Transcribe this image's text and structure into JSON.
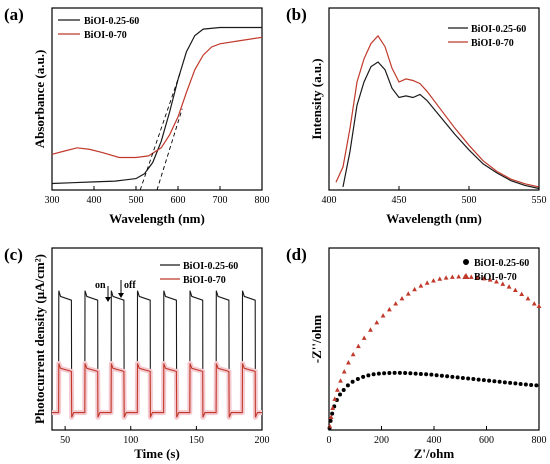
{
  "colors": {
    "black_series": "#1a1a1a",
    "red_series": "#c0392b",
    "fill_pink": "#f4c9cf"
  },
  "chart_data": [
    {
      "panel": "(a)",
      "type": "line",
      "xlabel": "Wavelength (nm)",
      "ylabel": "Absorbance (a.u.)",
      "xlim": [
        300,
        800
      ],
      "xticks": [
        "300",
        "400",
        "500",
        "600",
        "700",
        "800"
      ],
      "yticks": [],
      "legend": "top-left",
      "series": [
        {
          "name": "BiOI-0.25-60",
          "color": "#1a1a1a",
          "x": [
            300,
            350,
            400,
            450,
            500,
            520,
            540,
            560,
            580,
            600,
            620,
            640,
            660,
            700,
            750,
            800
          ],
          "y": [
            0.04,
            0.045,
            0.05,
            0.055,
            0.07,
            0.1,
            0.17,
            0.3,
            0.48,
            0.68,
            0.85,
            0.95,
            0.99,
            1.0,
            1.0,
            1.0
          ]
        },
        {
          "name": "BiOI-0-70",
          "color": "#c0392b",
          "x": [
            300,
            330,
            360,
            390,
            420,
            460,
            500,
            530,
            560,
            580,
            600,
            620,
            640,
            660,
            680,
            700,
            750,
            800
          ],
          "y": [
            0.22,
            0.24,
            0.26,
            0.25,
            0.23,
            0.2,
            0.2,
            0.21,
            0.26,
            0.34,
            0.45,
            0.6,
            0.74,
            0.83,
            0.88,
            0.9,
            0.92,
            0.94
          ]
        }
      ],
      "annotations": "dashed tangent lines intersecting x-axis near 510 nm and 550 nm"
    },
    {
      "panel": "(b)",
      "type": "line",
      "xlabel": "Wavelength (nm)",
      "ylabel": "Intensity (a.u.)",
      "xlim": [
        400,
        550
      ],
      "xticks": [
        "400",
        "450",
        "500",
        "550"
      ],
      "yticks": [],
      "legend": "top-right",
      "series": [
        {
          "name": "BiOI-0.25-60",
          "color": "#1a1a1a",
          "x": [
            410,
            415,
            420,
            425,
            430,
            435,
            440,
            445,
            450,
            455,
            460,
            465,
            470,
            480,
            490,
            500,
            510,
            520,
            530,
            540,
            550
          ],
          "y": [
            0.02,
            0.25,
            0.55,
            0.7,
            0.8,
            0.83,
            0.78,
            0.66,
            0.6,
            0.61,
            0.6,
            0.62,
            0.58,
            0.47,
            0.36,
            0.26,
            0.17,
            0.11,
            0.06,
            0.03,
            0.01
          ]
        },
        {
          "name": "BiOI-0-70",
          "color": "#c0392b",
          "x": [
            405,
            410,
            415,
            420,
            425,
            430,
            435,
            440,
            445,
            450,
            455,
            460,
            465,
            470,
            480,
            490,
            500,
            510,
            520,
            530,
            540,
            550
          ],
          "y": [
            0.05,
            0.15,
            0.4,
            0.7,
            0.85,
            0.95,
            1.0,
            0.93,
            0.79,
            0.7,
            0.72,
            0.71,
            0.69,
            0.64,
            0.52,
            0.4,
            0.29,
            0.19,
            0.12,
            0.07,
            0.04,
            0.02
          ]
        }
      ]
    },
    {
      "panel": "(c)",
      "type": "line",
      "xlabel": "Time (s)",
      "ylabel": "Photocurrent density (μA/cm²)",
      "xlim": [
        40,
        200
      ],
      "xticks": [
        "50",
        "100",
        "150",
        "200"
      ],
      "yticks": [],
      "legend": "top-right",
      "annotations": [
        "on",
        "off"
      ],
      "cycle_start": 45,
      "cycle_period": 20,
      "on_duration": 10,
      "cycles": 8,
      "series": [
        {
          "name": "BiOI-0.25-60",
          "color": "#1a1a1a",
          "on_level": 0.78,
          "steady_level": 0.72,
          "dark_level": 0.02
        },
        {
          "name": "BiOI-0-70",
          "color": "#c0392b",
          "on_level": 0.32,
          "steady_level": 0.27,
          "dark_level": 0.01
        }
      ]
    },
    {
      "panel": "(d)",
      "type": "scatter",
      "xlabel": "Z'/ohm",
      "ylabel": "-Z''/ohm",
      "xlim": [
        0,
        800
      ],
      "ylim": [
        0,
        1000
      ],
      "xticks": [
        "0",
        "200",
        "400",
        "600",
        "800"
      ],
      "yticks": [],
      "legend": "top-right",
      "series": [
        {
          "name": "BiOI-0.25-60",
          "color": "#000000",
          "marker": "circle",
          "x": [
            2,
            6,
            12,
            20,
            30,
            42,
            56,
            72,
            90,
            110,
            130,
            150,
            170,
            190,
            210,
            230,
            250,
            270,
            290,
            310,
            330,
            350,
            370,
            390,
            410,
            430,
            450,
            470,
            490,
            510,
            530,
            550,
            570,
            590,
            610,
            630,
            650,
            670,
            690,
            710,
            730,
            750,
            770,
            790
          ],
          "y": [
            10,
            50,
            90,
            130,
            165,
            195,
            220,
            245,
            265,
            280,
            292,
            300,
            306,
            310,
            312,
            313,
            314,
            314,
            313,
            312,
            310,
            308,
            306,
            304,
            301,
            298,
            295,
            292,
            289,
            286,
            283,
            280,
            277,
            274,
            271,
            268,
            265,
            262,
            259,
            256,
            253,
            250,
            247,
            245
          ]
        },
        {
          "name": "BiOI-0-70",
          "color": "#c0392b",
          "marker": "triangle",
          "x": [
            3,
            8,
            14,
            22,
            32,
            44,
            58,
            74,
            92,
            112,
            134,
            158,
            182,
            206,
            230,
            254,
            278,
            302,
            326,
            350,
            374,
            398,
            422,
            446,
            470,
            494,
            518,
            542,
            566,
            590,
            614,
            638,
            662,
            686,
            710,
            734,
            758,
            782,
            800
          ],
          "y": [
            20,
            70,
            120,
            170,
            220,
            270,
            320,
            370,
            415,
            460,
            505,
            550,
            590,
            628,
            662,
            694,
            722,
            748,
            772,
            792,
            808,
            820,
            830,
            836,
            840,
            842,
            842,
            840,
            837,
            832,
            825,
            815,
            802,
            787,
            768,
            746,
            722,
            694,
            680
          ]
        }
      ]
    }
  ]
}
